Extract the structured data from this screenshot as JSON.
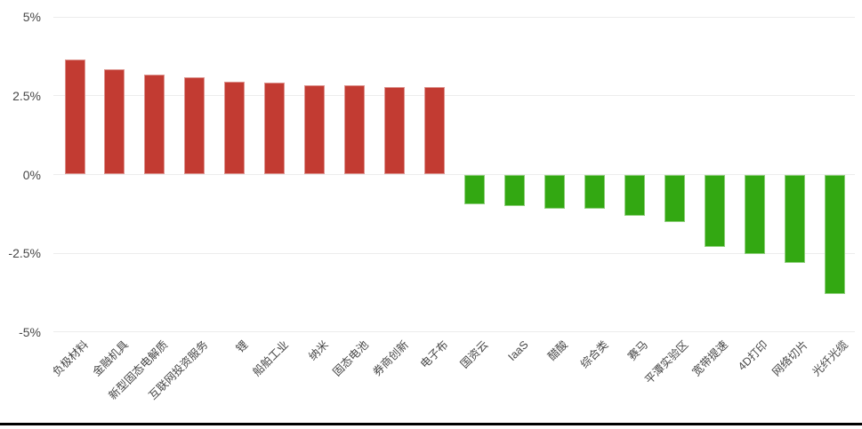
{
  "chart_data": {
    "type": "bar",
    "title": "",
    "xlabel": "",
    "ylabel": "",
    "ylim": [
      -5,
      5
    ],
    "grid": true,
    "legend": "none",
    "categories": [
      "负极材料",
      "金融机具",
      "新型固态电解质",
      "互联网投资服务",
      "锂",
      "船舶工业",
      "纳米",
      "固态电池",
      "券商创新",
      "电子布",
      "国资云",
      "IaaS",
      "醋酸",
      "综合类",
      "赛马",
      "平潭实验区",
      "宽带提速",
      "4D打印",
      "网络切片",
      "光纤光缆"
    ],
    "values": [
      3.65,
      3.34,
      3.18,
      3.1,
      2.95,
      2.93,
      2.83,
      2.83,
      2.79,
      2.79,
      -0.94,
      -1.0,
      -1.09,
      -1.09,
      -1.3,
      -1.5,
      -2.3,
      -2.52,
      -2.8,
      -3.78
    ],
    "value_unit": "%",
    "yticks": [
      {
        "label": "5%",
        "value": 5
      },
      {
        "label": "2.5%",
        "value": 2.5
      },
      {
        "label": "0%",
        "value": 0
      },
      {
        "label": "-2.5%",
        "value": -2.5
      },
      {
        "label": "-5%",
        "value": -5
      }
    ],
    "colors": {
      "positive_bar": "#C23B32",
      "negative_bar": "#33A812",
      "gridline": "#ECECEC",
      "tick_label": "#474747",
      "category_label": "#474747",
      "bottom_rule": "#000000"
    }
  }
}
